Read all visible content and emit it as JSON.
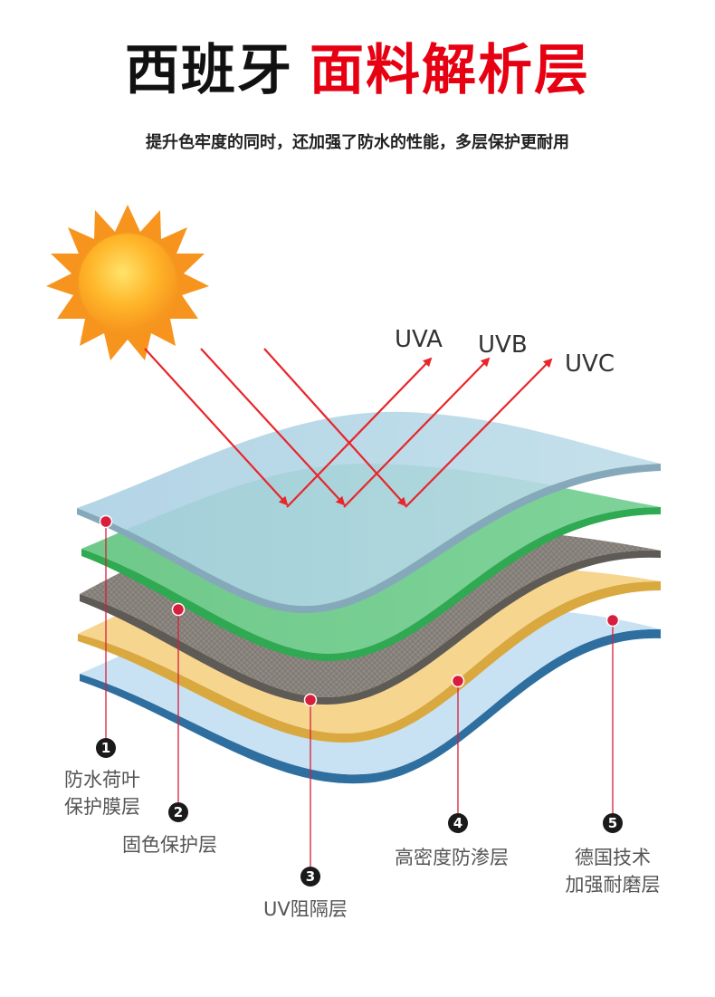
{
  "title": {
    "part1": "西班牙",
    "part2": "面料解析层"
  },
  "subtitle": "提升色牢度的同时，还加强了防水的性能，多层保护更耐用",
  "uv_labels": [
    "UVA",
    "UVB",
    "UVC"
  ],
  "layers": [
    {
      "num": "1",
      "line1": "防水荷叶",
      "line2": "保护膜层"
    },
    {
      "num": "2",
      "line1": "固色保护层"
    },
    {
      "num": "3",
      "line1": "UV阻隔层"
    },
    {
      "num": "4",
      "line1": "高密度防渗层"
    },
    {
      "num": "5",
      "line1": "德国技术",
      "line2": "加强耐磨层"
    }
  ],
  "colors": {
    "accent_red": "#e60012",
    "arrow_red": "#e8262b",
    "dot_red": "#d81e3c",
    "sun_orange": "#f7941d",
    "sun_yellow": "#ffd23f"
  }
}
